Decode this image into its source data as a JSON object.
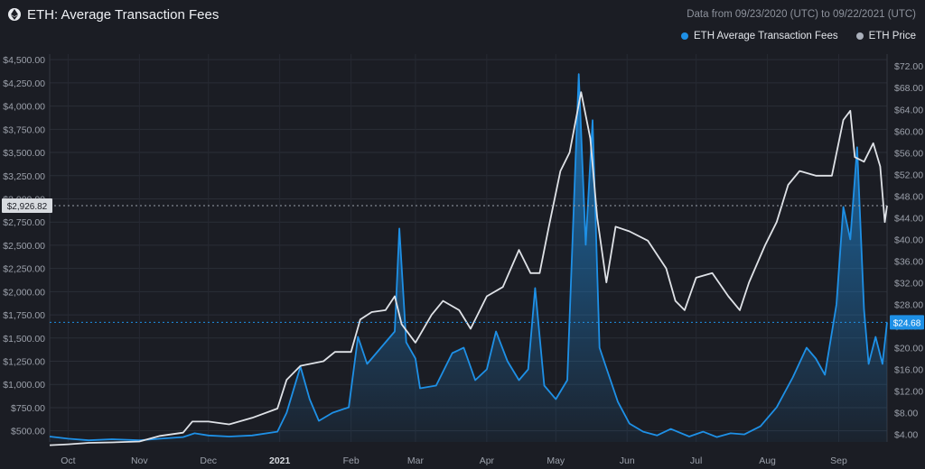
{
  "header": {
    "title": "ETH: Average Transaction Fees",
    "range": "Data from 09/23/2020 (UTC) to 09/22/2021 (UTC)"
  },
  "legend": [
    {
      "label": "ETH Average Transaction Fees",
      "color": "#1e90e6"
    },
    {
      "label": "ETH Price",
      "color": "#aab0bb"
    }
  ],
  "colors": {
    "fees": "#1e90e6",
    "price": "#dfe2e7",
    "background": "#1b1d24"
  },
  "chart_data": {
    "type": "line",
    "x_range": [
      "2020-09-23",
      "2021-09-22"
    ],
    "x_ticks": [
      {
        "label": "Oct",
        "date": "2020-10-01"
      },
      {
        "label": "Nov",
        "date": "2020-11-01"
      },
      {
        "label": "Dec",
        "date": "2020-12-01"
      },
      {
        "label": "2021",
        "date": "2021-01-01",
        "bold": true
      },
      {
        "label": "Feb",
        "date": "2021-02-01"
      },
      {
        "label": "Mar",
        "date": "2021-03-01"
      },
      {
        "label": "Apr",
        "date": "2021-04-01"
      },
      {
        "label": "May",
        "date": "2021-05-01"
      },
      {
        "label": "Jun",
        "date": "2021-06-01"
      },
      {
        "label": "Jul",
        "date": "2021-07-01"
      },
      {
        "label": "Aug",
        "date": "2021-08-01"
      },
      {
        "label": "Sep",
        "date": "2021-09-01"
      }
    ],
    "left_axis": {
      "ticks": [
        500,
        750,
        1000,
        1250,
        1500,
        1750,
        2000,
        2250,
        2500,
        2750,
        3000,
        3250,
        3500,
        3750,
        4000,
        4250,
        4500
      ],
      "tick_labels": [
        "$500.00",
        "$750.00",
        "$1,000.00",
        "$1,250.00",
        "$1,500.00",
        "$1,750.00",
        "$2,000.00",
        "$2,250.00",
        "$2,500.00",
        "$2,750.00",
        "$3,000.00",
        "$3,250.00",
        "$3,500.00",
        "$3,750.00",
        "$4,000.00",
        "$4,250.00",
        "$4,500.00"
      ],
      "range": [
        380,
        4560
      ]
    },
    "right_axis": {
      "ticks": [
        4,
        8,
        12,
        16,
        20,
        24,
        28,
        32,
        36,
        40,
        44,
        48,
        52,
        56,
        60,
        64,
        68,
        72
      ],
      "tick_labels": [
        "$4.00",
        "$8.00",
        "$12.00",
        "$16.00",
        "$20.00",
        "$24.00",
        "$28.00",
        "$32.00",
        "$36.00",
        "$40.00",
        "$44.00",
        "$48.00",
        "$52.00",
        "$56.00",
        "$60.00",
        "$64.00",
        "$68.00",
        "$72.00"
      ],
      "range": [
        2.6,
        74.2
      ]
    },
    "series": [
      {
        "name": "ETH Price",
        "axis": "left",
        "points": [
          [
            "2020-09-23",
            345
          ],
          [
            "2020-10-01",
            355
          ],
          [
            "2020-10-10",
            370
          ],
          [
            "2020-10-20",
            375
          ],
          [
            "2020-11-01",
            385
          ],
          [
            "2020-11-10",
            445
          ],
          [
            "2020-11-20",
            480
          ],
          [
            "2020-11-24",
            600
          ],
          [
            "2020-12-01",
            600
          ],
          [
            "2020-12-10",
            570
          ],
          [
            "2020-12-20",
            640
          ],
          [
            "2020-12-31",
            740
          ],
          [
            "2021-01-04",
            1050
          ],
          [
            "2021-01-10",
            1200
          ],
          [
            "2021-01-20",
            1250
          ],
          [
            "2021-01-25",
            1350
          ],
          [
            "2021-02-01",
            1350
          ],
          [
            "2021-02-05",
            1700
          ],
          [
            "2021-02-10",
            1780
          ],
          [
            "2021-02-16",
            1800
          ],
          [
            "2021-02-20",
            1950
          ],
          [
            "2021-02-23",
            1650
          ],
          [
            "2021-03-01",
            1450
          ],
          [
            "2021-03-08",
            1750
          ],
          [
            "2021-03-13",
            1900
          ],
          [
            "2021-03-20",
            1800
          ],
          [
            "2021-03-25",
            1600
          ],
          [
            "2021-04-01",
            1950
          ],
          [
            "2021-04-08",
            2050
          ],
          [
            "2021-04-15",
            2450
          ],
          [
            "2021-04-20",
            2200
          ],
          [
            "2021-04-24",
            2200
          ],
          [
            "2021-04-28",
            2700
          ],
          [
            "2021-05-03",
            3300
          ],
          [
            "2021-05-07",
            3500
          ],
          [
            "2021-05-12",
            4150
          ],
          [
            "2021-05-16",
            3650
          ],
          [
            "2021-05-19",
            2800
          ],
          [
            "2021-05-23",
            2100
          ],
          [
            "2021-05-27",
            2700
          ],
          [
            "2021-06-02",
            2650
          ],
          [
            "2021-06-10",
            2550
          ],
          [
            "2021-06-18",
            2250
          ],
          [
            "2021-06-22",
            1900
          ],
          [
            "2021-06-26",
            1800
          ],
          [
            "2021-07-01",
            2150
          ],
          [
            "2021-07-08",
            2200
          ],
          [
            "2021-07-15",
            1950
          ],
          [
            "2021-07-20",
            1800
          ],
          [
            "2021-07-24",
            2100
          ],
          [
            "2021-07-31",
            2500
          ],
          [
            "2021-08-05",
            2750
          ],
          [
            "2021-08-10",
            3150
          ],
          [
            "2021-08-15",
            3300
          ],
          [
            "2021-08-22",
            3250
          ],
          [
            "2021-08-29",
            3250
          ],
          [
            "2021-09-03",
            3850
          ],
          [
            "2021-09-06",
            3950
          ],
          [
            "2021-09-08",
            3450
          ],
          [
            "2021-09-12",
            3400
          ],
          [
            "2021-09-16",
            3600
          ],
          [
            "2021-09-19",
            3350
          ],
          [
            "2021-09-21",
            2750
          ],
          [
            "2021-09-22",
            2926.82
          ]
        ]
      },
      {
        "name": "ETH Average Transaction Fees",
        "axis": "right",
        "points": [
          [
            "2020-09-23",
            3.6
          ],
          [
            "2020-10-01",
            3.2
          ],
          [
            "2020-10-10",
            2.9
          ],
          [
            "2020-10-20",
            3.1
          ],
          [
            "2020-11-01",
            2.9
          ],
          [
            "2020-11-10",
            3.2
          ],
          [
            "2020-11-20",
            3.5
          ],
          [
            "2020-11-25",
            4.2
          ],
          [
            "2020-12-01",
            3.8
          ],
          [
            "2020-12-10",
            3.6
          ],
          [
            "2020-12-20",
            3.8
          ],
          [
            "2020-12-31",
            4.5
          ],
          [
            "2021-01-04",
            8.0
          ],
          [
            "2021-01-10",
            16.5
          ],
          [
            "2021-01-14",
            10.5
          ],
          [
            "2021-01-18",
            6.5
          ],
          [
            "2021-01-24",
            8.0
          ],
          [
            "2021-01-31",
            9.0
          ],
          [
            "2021-02-04",
            22.0
          ],
          [
            "2021-02-08",
            17.0
          ],
          [
            "2021-02-12",
            19.0
          ],
          [
            "2021-02-16",
            21.0
          ],
          [
            "2021-02-20",
            23.0
          ],
          [
            "2021-02-22",
            42.0
          ],
          [
            "2021-02-25",
            21.0
          ],
          [
            "2021-03-01",
            18.0
          ],
          [
            "2021-03-03",
            12.5
          ],
          [
            "2021-03-10",
            13.0
          ],
          [
            "2021-03-17",
            19.0
          ],
          [
            "2021-03-22",
            20.0
          ],
          [
            "2021-03-27",
            14.0
          ],
          [
            "2021-04-01",
            16.0
          ],
          [
            "2021-04-05",
            23.0
          ],
          [
            "2021-04-10",
            17.5
          ],
          [
            "2021-04-15",
            14.0
          ],
          [
            "2021-04-19",
            16.0
          ],
          [
            "2021-04-22",
            31.0
          ],
          [
            "2021-04-26",
            13.0
          ],
          [
            "2021-05-01",
            10.5
          ],
          [
            "2021-05-06",
            14.0
          ],
          [
            "2021-05-11",
            70.5
          ],
          [
            "2021-05-14",
            39.0
          ],
          [
            "2021-05-17",
            62.0
          ],
          [
            "2021-05-20",
            20.0
          ],
          [
            "2021-05-24",
            15.0
          ],
          [
            "2021-05-28",
            10.0
          ],
          [
            "2021-06-02",
            6.0
          ],
          [
            "2021-06-08",
            4.5
          ],
          [
            "2021-06-14",
            3.8
          ],
          [
            "2021-06-20",
            5.0
          ],
          [
            "2021-06-28",
            3.6
          ],
          [
            "2021-07-04",
            4.5
          ],
          [
            "2021-07-10",
            3.5
          ],
          [
            "2021-07-16",
            4.2
          ],
          [
            "2021-07-22",
            4.0
          ],
          [
            "2021-07-29",
            5.5
          ],
          [
            "2021-08-05",
            9.0
          ],
          [
            "2021-08-12",
            14.5
          ],
          [
            "2021-08-18",
            20.0
          ],
          [
            "2021-08-22",
            18.0
          ],
          [
            "2021-08-26",
            15.0
          ],
          [
            "2021-08-31",
            28.0
          ],
          [
            "2021-09-03",
            46.0
          ],
          [
            "2021-09-06",
            40.0
          ],
          [
            "2021-09-09",
            57.0
          ],
          [
            "2021-09-12",
            27.0
          ],
          [
            "2021-09-14",
            17.0
          ],
          [
            "2021-09-17",
            22.0
          ],
          [
            "2021-09-20",
            17.0
          ],
          [
            "2021-09-22",
            24.68
          ]
        ]
      }
    ],
    "current_labels": [
      {
        "axis": "left",
        "value": 2926.82,
        "label": "$2,926.82"
      },
      {
        "axis": "right",
        "value": 24.68,
        "label": "$24.68"
      }
    ],
    "grid": true
  }
}
